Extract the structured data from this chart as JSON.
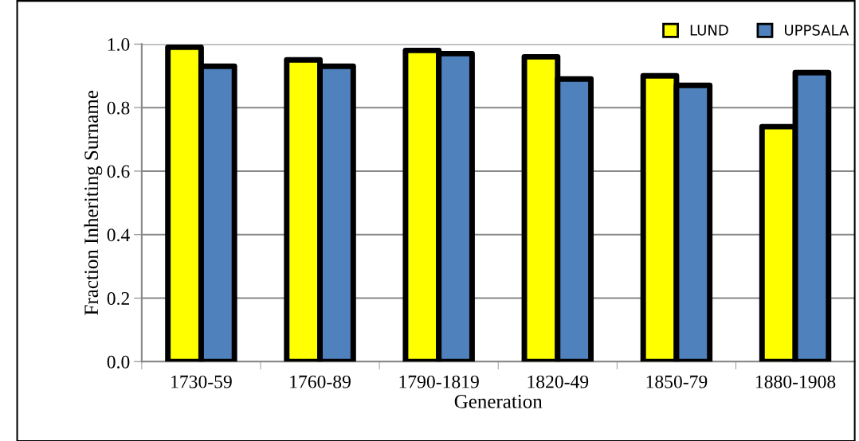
{
  "chart_data": {
    "type": "bar",
    "xlabel": "Generation",
    "ylabel": "Fraction Inheriting Surname",
    "categories": [
      "1730-59",
      "1760-89",
      "1790-1819",
      "1820-49",
      "1850-79",
      "1880-1908"
    ],
    "series": [
      {
        "name": "LUND",
        "color": "#ffff00",
        "values": [
          0.99,
          0.95,
          0.98,
          0.96,
          0.9,
          0.74
        ]
      },
      {
        "name": "UPPSALA",
        "color": "#4f81bd",
        "values": [
          0.93,
          0.93,
          0.97,
          0.89,
          0.87,
          0.91
        ]
      }
    ],
    "ylim": [
      0,
      1.0
    ],
    "yticks": [
      {
        "value": 0,
        "label": "0.0"
      },
      0.2,
      0.4,
      0.6,
      0.8,
      {
        "value": 1.0,
        "label": "1.0"
      }
    ],
    "grid": "y",
    "legend": "top right"
  }
}
